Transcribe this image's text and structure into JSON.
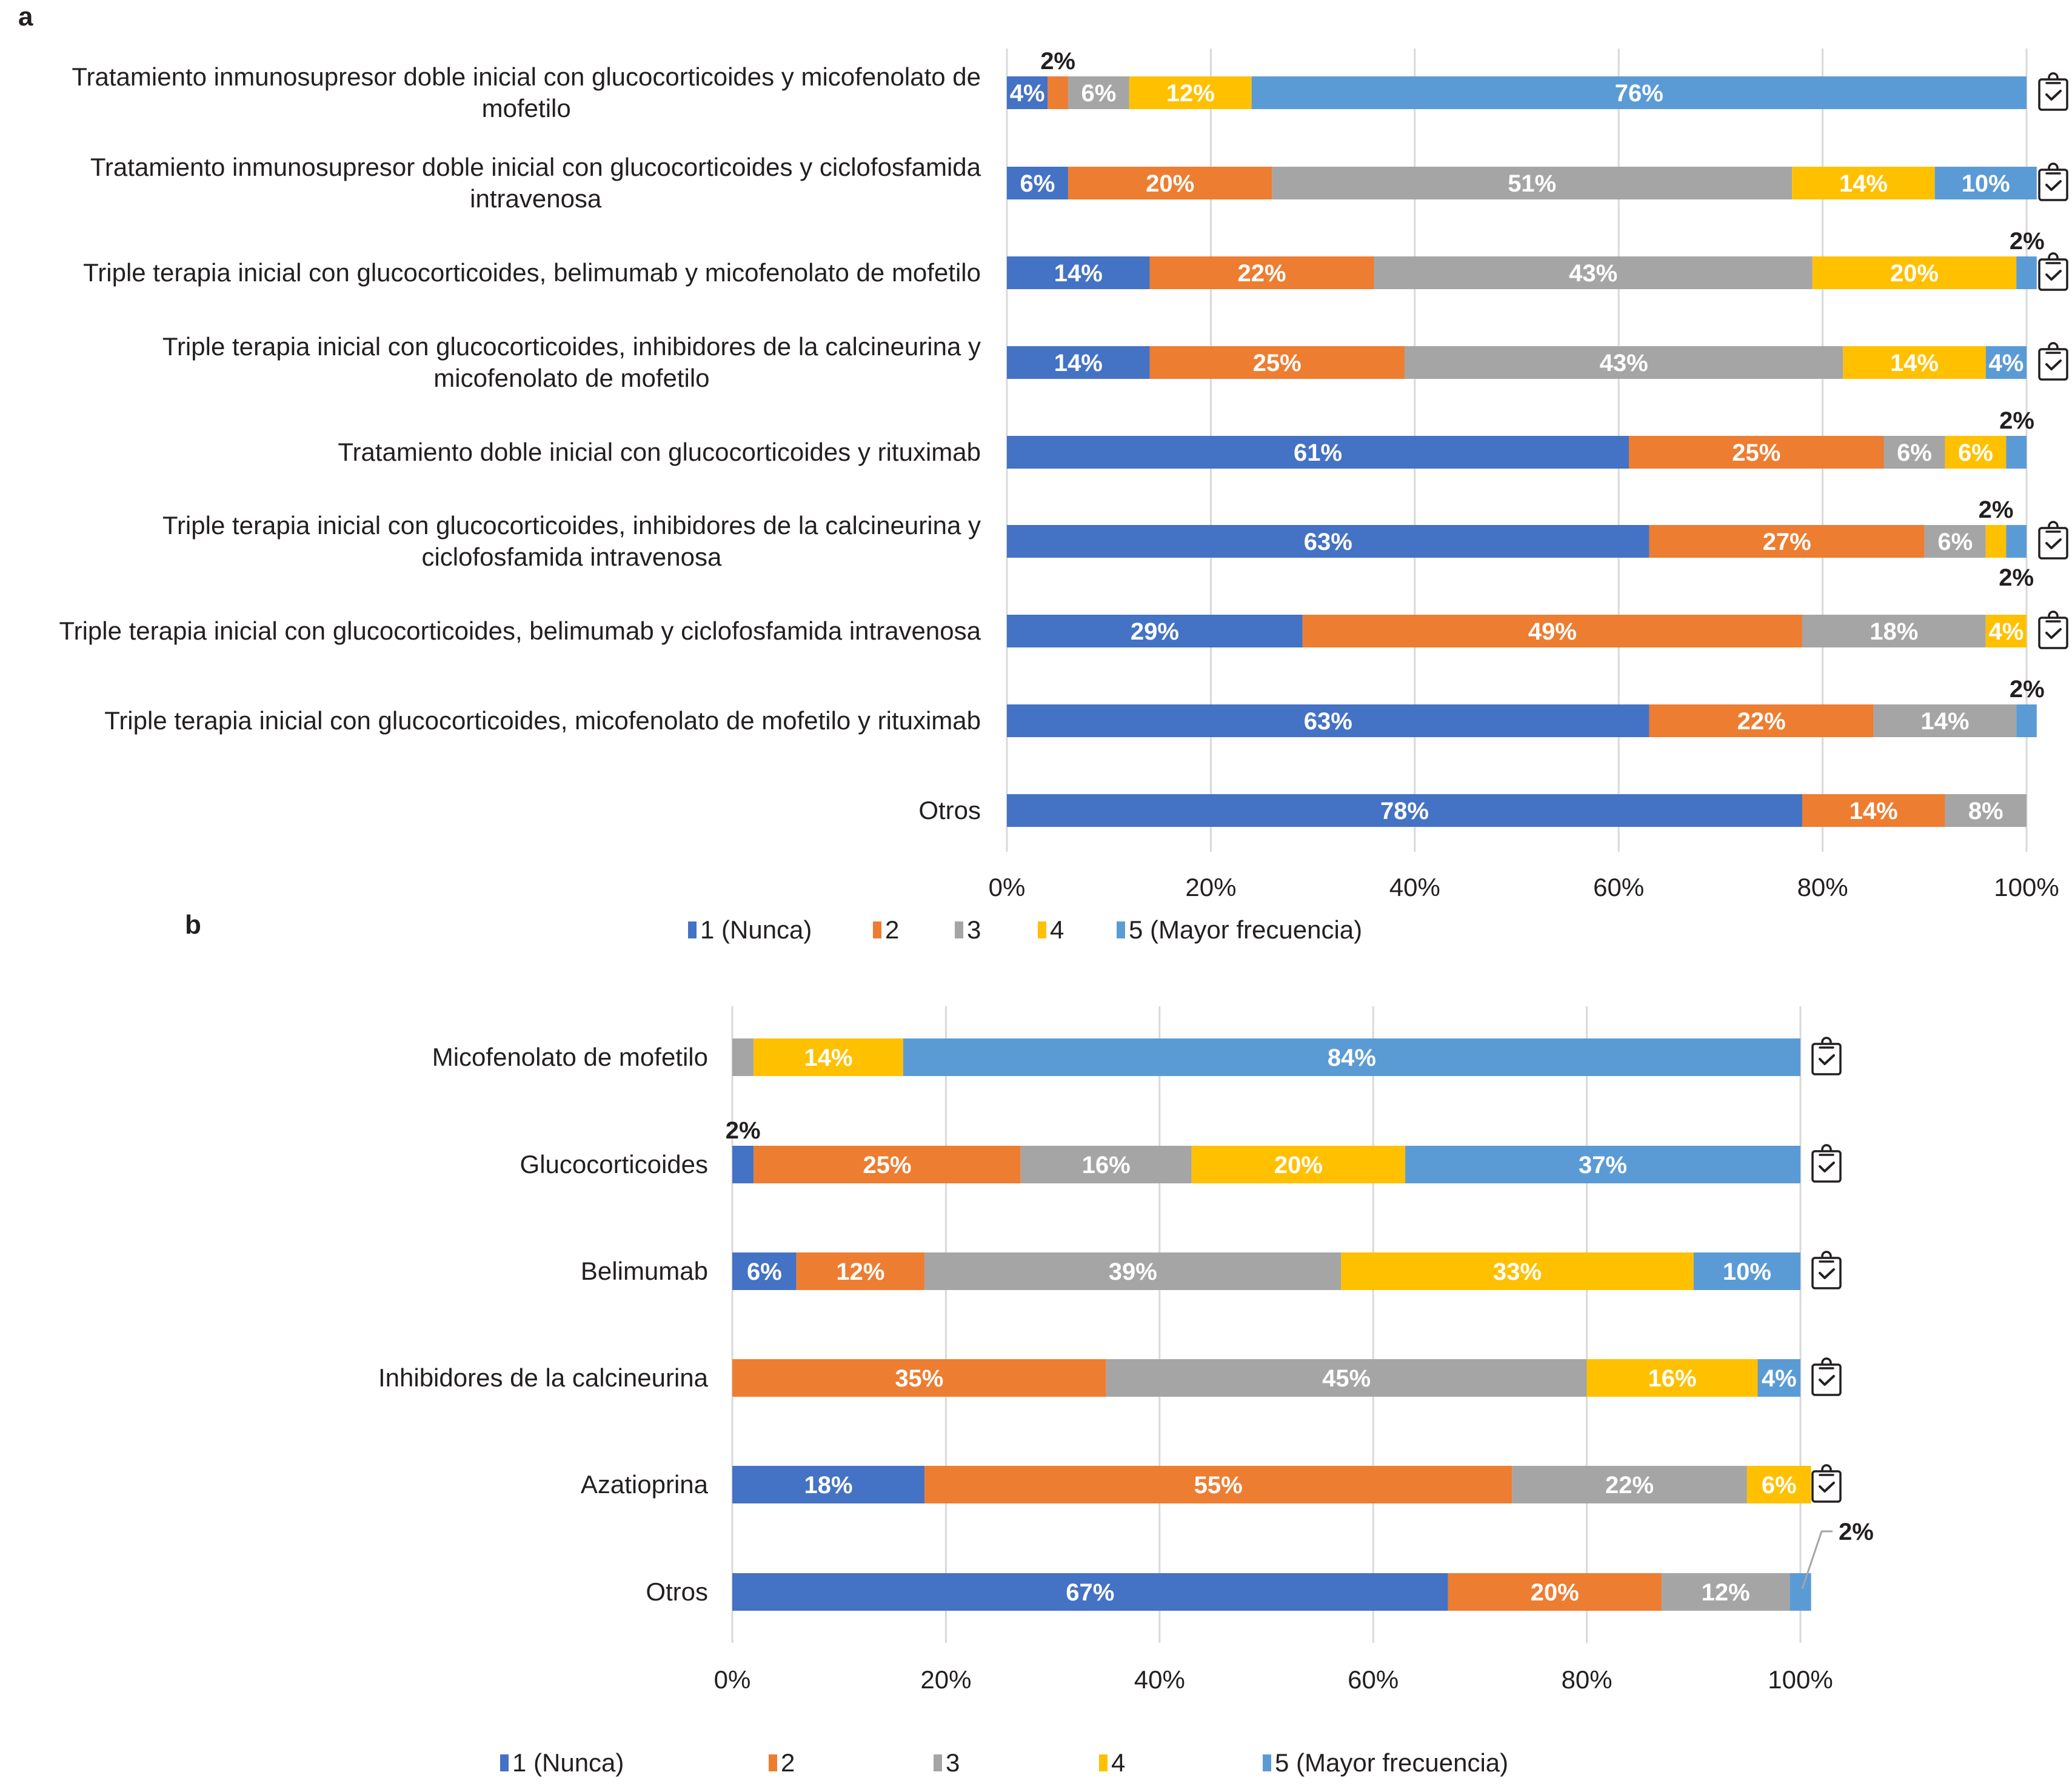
{
  "colors": {
    "1": "#4472c4",
    "2": "#ed7d31",
    "3": "#a5a5a5",
    "4": "#ffc000",
    "5": "#5b9bd5",
    "grid": "#d9d9d9",
    "text": "#231f20"
  },
  "chart_data": [
    {
      "panel": "a",
      "type": "bar",
      "orientation": "horizontal",
      "stacked": "100%",
      "xlim": [
        0,
        100
      ],
      "xticks": [
        "0%",
        "20%",
        "40%",
        "60%",
        "80%",
        "100%"
      ],
      "grid": true,
      "legend_position": "bottom",
      "legend": [
        "1 (Nunca)",
        "2",
        "3",
        "4",
        "5 (Mayor frecuencia)"
      ],
      "categories": [
        {
          "label": [
            "Tratamiento inmunosupresor doble inicial con glucocorticoides y micofenolato de",
            "mofetilo"
          ],
          "values": [
            4,
            2,
            6,
            12,
            76
          ],
          "icon": true,
          "labels": [
            "4%",
            "2%",
            "6%",
            "12%",
            "76%"
          ],
          "outside": [
            1
          ]
        },
        {
          "label": [
            "Tratamiento inmunosupresor doble inicial con glucocorticoides y ciclofosfamida",
            "intravenosa"
          ],
          "values": [
            6,
            20,
            51,
            14,
            10
          ],
          "icon": true,
          "labels": [
            "6%",
            "20%",
            "51%",
            "14%",
            "10%"
          ],
          "outside": []
        },
        {
          "label": [
            "Triple terapia inicial con glucocorticoides, belimumab y micofenolato de mofetilo"
          ],
          "values": [
            14,
            22,
            43,
            20,
            2
          ],
          "icon": true,
          "labels": [
            "14%",
            "22%",
            "43%",
            "20%",
            "2%"
          ],
          "outside": [
            4
          ]
        },
        {
          "label": [
            "Triple terapia inicial con glucocorticoides, inhibidores de la calcineurina y",
            "micofenolato de mofetilo"
          ],
          "values": [
            14,
            25,
            43,
            14,
            4
          ],
          "icon": true,
          "labels": [
            "14%",
            "25%",
            "43%",
            "14%",
            "4%"
          ],
          "outside": []
        },
        {
          "label": [
            "Tratamiento doble inicial con glucocorticoides y rituximab"
          ],
          "values": [
            61,
            25,
            6,
            6,
            2
          ],
          "icon": false,
          "labels": [
            "61%",
            "25%",
            "6%",
            "6%",
            "2%"
          ],
          "outside": [
            4
          ]
        },
        {
          "label": [
            "Triple terapia inicial con glucocorticoides, inhibidores de la calcineurina y",
            "ciclofosfamida intravenosa"
          ],
          "values": [
            63,
            27,
            6,
            2,
            2
          ],
          "icon": true,
          "labels": [
            "63%",
            "27%",
            "6%",
            "2%",
            "2%"
          ],
          "outside": [
            3,
            4
          ]
        },
        {
          "label": [
            "Triple terapia inicial con glucocorticoides, belimumab y ciclofosfamida intravenosa"
          ],
          "values": [
            29,
            49,
            18,
            4,
            0
          ],
          "icon": true,
          "labels": [
            "29%",
            "49%",
            "18%",
            "4%",
            ""
          ],
          "outside": []
        },
        {
          "label": [
            "Triple terapia inicial con glucocorticoides, micofenolato de mofetilo y rituximab"
          ],
          "values": [
            63,
            22,
            14,
            0,
            2
          ],
          "icon": false,
          "labels": [
            "63%",
            "22%",
            "14%",
            "",
            "2%"
          ],
          "outside": [
            4
          ]
        },
        {
          "label": [
            "Otros"
          ],
          "values": [
            78,
            14,
            8,
            0,
            0
          ],
          "icon": false,
          "labels": [
            "78%",
            "14%",
            "8%",
            "",
            ""
          ],
          "outside": []
        }
      ]
    },
    {
      "panel": "b",
      "type": "bar",
      "orientation": "horizontal",
      "stacked": "100%",
      "xlim": [
        0,
        100
      ],
      "xticks": [
        "0%",
        "20%",
        "40%",
        "60%",
        "80%",
        "100%"
      ],
      "grid": true,
      "legend_position": "bottom",
      "legend": [
        "1 (Nunca)",
        "2",
        "3",
        "4",
        "5 (Mayor frecuencia)"
      ],
      "categories": [
        {
          "label": [
            "Micofenolato de mofetilo"
          ],
          "values": [
            0,
            0,
            2,
            14,
            84
          ],
          "icon": true,
          "labels": [
            "",
            "",
            "",
            "14%",
            "84%"
          ],
          "outside": []
        },
        {
          "label": [
            "Glucocorticoides"
          ],
          "values": [
            2,
            25,
            16,
            20,
            37
          ],
          "icon": true,
          "labels": [
            "2%",
            "25%",
            "16%",
            "20%",
            "37%"
          ],
          "outside": [
            0
          ]
        },
        {
          "label": [
            "Belimumab"
          ],
          "values": [
            6,
            12,
            39,
            33,
            10
          ],
          "icon": true,
          "labels": [
            "6%",
            "12%",
            "39%",
            "33%",
            "10%"
          ],
          "outside": []
        },
        {
          "label": [
            "Inhibidores de la calcineurina"
          ],
          "values": [
            0,
            35,
            45,
            16,
            4
          ],
          "icon": true,
          "labels": [
            "",
            "35%",
            "45%",
            "16%",
            "4%"
          ],
          "outside": []
        },
        {
          "label": [
            "Azatioprina"
          ],
          "values": [
            18,
            55,
            22,
            6,
            0
          ],
          "icon": true,
          "labels": [
            "18%",
            "55%",
            "22%",
            "6%",
            ""
          ],
          "outside": []
        },
        {
          "label": [
            "Otros"
          ],
          "values": [
            67,
            20,
            12,
            0,
            2
          ],
          "icon": false,
          "labels": [
            "67%",
            "20%",
            "12%",
            "",
            "2%"
          ],
          "outside": [
            4
          ],
          "leader": [
            4
          ]
        }
      ]
    }
  ]
}
